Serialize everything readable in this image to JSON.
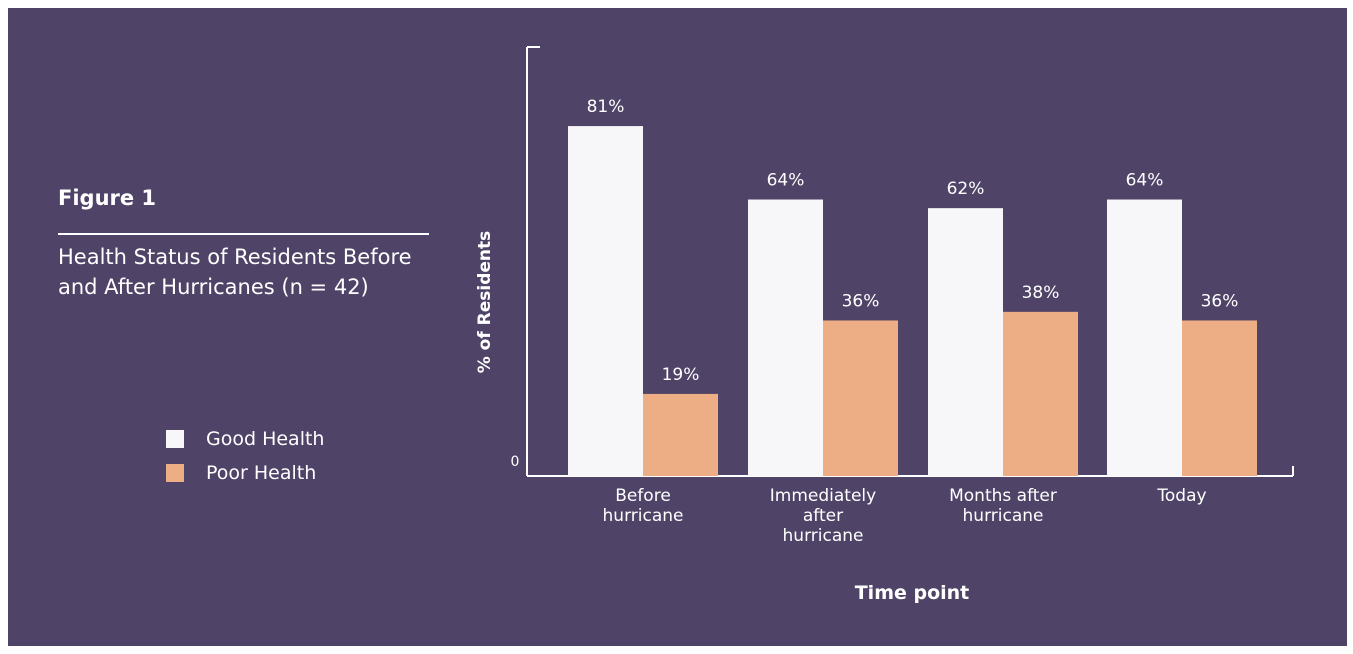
{
  "figure": {
    "label": "Figure 1",
    "title": "Health Status of Residents Before and After Hurricanes (n = 42)"
  },
  "legend": {
    "items": [
      {
        "label": "Good Health",
        "color": "#f7f7f9"
      },
      {
        "label": "Poor Health",
        "color": "#eeae85"
      }
    ]
  },
  "chart_data": {
    "type": "bar",
    "categories": [
      [
        "Before",
        "hurricane"
      ],
      [
        "Immediately",
        "after",
        "hurricane"
      ],
      [
        "Months after",
        "hurricane"
      ],
      [
        "Today"
      ]
    ],
    "series": [
      {
        "name": "Good Health",
        "values": [
          81,
          64,
          62,
          64
        ],
        "color": "#f7f7f9",
        "labels": [
          "81%",
          "64%",
          "62%",
          "64%"
        ]
      },
      {
        "name": "Poor Health",
        "values": [
          19,
          36,
          38,
          36
        ],
        "color": "#eeae85",
        "labels": [
          "19%",
          "36%",
          "38%",
          "36%"
        ]
      }
    ],
    "xlabel": "Time point",
    "ylabel": "% of Residents",
    "y_tick_label": "0",
    "ylim": [
      0,
      100
    ],
    "grid": false,
    "legend_position": "left"
  }
}
